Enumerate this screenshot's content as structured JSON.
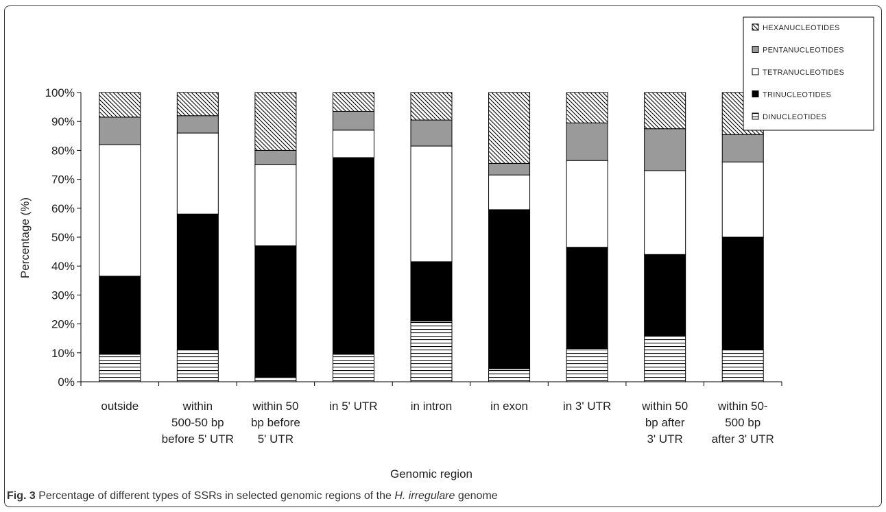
{
  "caption": {
    "label": "Fig. 3",
    "text_before": "Percentage of different types of SSRs in selected genomic regions of the",
    "italic": "H. irregulare",
    "text_after": "genome"
  },
  "chart_data": {
    "type": "bar",
    "stacked": true,
    "percent": true,
    "title": "",
    "xlabel": "Genomic region",
    "ylabel": "Percentage (%)",
    "ylim": [
      0,
      100
    ],
    "yticks": [
      "0%",
      "10%",
      "20%",
      "30%",
      "40%",
      "50%",
      "60%",
      "70%",
      "80%",
      "90%",
      "100%"
    ],
    "categories": [
      [
        "outside"
      ],
      [
        "within",
        "500-50 bp",
        "before 5' UTR"
      ],
      [
        "within 50",
        "bp before",
        "5' UTR"
      ],
      [
        "in 5' UTR"
      ],
      [
        "in intron"
      ],
      [
        "in exon"
      ],
      [
        "in 3' UTR"
      ],
      [
        "within 50",
        "bp after",
        "3' UTR"
      ],
      [
        "within 50-",
        "500 bp",
        "after 3' UTR"
      ]
    ],
    "series": [
      {
        "name": "DINUCLEOTIDES",
        "pattern": "horizontal-lines",
        "values": [
          9.5,
          11,
          1.5,
          9.5,
          21,
          4.5,
          11.5,
          16,
          11
        ]
      },
      {
        "name": "TRINUCLEOTIDES",
        "pattern": "solid-black",
        "values": [
          27,
          47,
          45.5,
          68,
          20.5,
          55,
          35,
          28,
          39
        ]
      },
      {
        "name": "TETRANUCLEOTIDES",
        "pattern": "white",
        "values": [
          45.5,
          28,
          28,
          9.5,
          40,
          12,
          30,
          29,
          26
        ]
      },
      {
        "name": "PENTANUCLEOTIDES",
        "pattern": "gray",
        "values": [
          9.5,
          6,
          5,
          6.5,
          9,
          4,
          13,
          14.5,
          9.5
        ]
      },
      {
        "name": "HEXANUCLEOTIDES",
        "pattern": "diagonal-lines",
        "values": [
          8.5,
          8,
          20,
          6.5,
          9.5,
          24.5,
          10.5,
          12.5,
          14.5
        ]
      }
    ],
    "legend": {
      "position": "top-right",
      "order": [
        "HEXANUCLEOTIDES",
        "PENTANUCLEOTIDES",
        "TETRANUCLEOTIDES",
        "TRINUCLEOTIDES",
        "DINUCLEOTIDES"
      ]
    },
    "grid": false,
    "colors": {
      "black": "#000000",
      "gray": "#9a9a9a",
      "white": "#ffffff",
      "stroke": "#000000"
    }
  }
}
